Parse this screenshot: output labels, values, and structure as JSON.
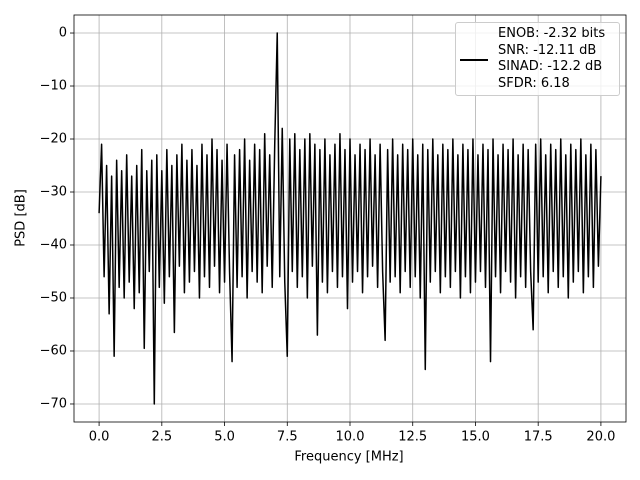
{
  "chart_data": {
    "type": "line",
    "xlabel": "Frequency [MHz]",
    "ylabel": "PSD [dB]",
    "xlim": [
      -1,
      21
    ],
    "ylim": [
      -73.4,
      3.4
    ],
    "grid": true,
    "legend": "upper right",
    "xticks": [
      {
        "value": 0,
        "label": "0.0"
      },
      {
        "value": 2.5,
        "label": "2.5"
      },
      {
        "value": 5,
        "label": "5.0"
      },
      {
        "value": 7.5,
        "label": "7.5"
      },
      {
        "value": 10,
        "label": "10.0"
      },
      {
        "value": 12.5,
        "label": "12.5"
      },
      {
        "value": 15,
        "label": "15.0"
      },
      {
        "value": 17.5,
        "label": "17.5"
      },
      {
        "value": 20,
        "label": "20.0"
      }
    ],
    "yticks": [
      0,
      {
        "value": -10,
        "label": "−10"
      },
      {
        "value": -20,
        "label": "−20"
      },
      {
        "value": -30,
        "label": "−30"
      },
      {
        "value": -40,
        "label": "−40"
      },
      {
        "value": -50,
        "label": "−50"
      },
      {
        "value": -60,
        "label": "−60"
      },
      {
        "value": -70,
        "label": "−70"
      }
    ],
    "x": [
      0,
      0.1,
      0.2,
      0.3,
      0.4,
      0.5,
      0.6,
      0.7,
      0.8,
      0.9,
      1,
      1.1,
      1.2,
      1.3,
      1.4,
      1.5,
      1.6,
      1.7,
      1.8,
      1.9,
      2,
      2.1,
      2.2,
      2.3,
      2.4,
      2.5,
      2.6,
      2.7,
      2.8,
      2.9,
      3,
      3.1,
      3.2,
      3.3,
      3.4,
      3.5,
      3.6,
      3.7,
      3.8,
      3.9,
      4,
      4.1,
      4.2,
      4.3,
      4.4,
      4.5,
      4.6,
      4.7,
      4.8,
      4.9,
      5,
      5.1,
      5.2,
      5.3,
      5.4,
      5.5,
      5.6,
      5.7,
      5.8,
      5.9,
      6,
      6.1,
      6.2,
      6.3,
      6.4,
      6.5,
      6.6,
      6.7,
      6.8,
      6.9,
      7,
      7.1,
      7.2,
      7.3,
      7.4,
      7.5,
      7.6,
      7.7,
      7.8,
      7.9,
      8,
      8.1,
      8.2,
      8.3,
      8.4,
      8.5,
      8.6,
      8.7,
      8.8,
      8.9,
      9,
      9.1,
      9.2,
      9.3,
      9.4,
      9.5,
      9.6,
      9.7,
      9.8,
      9.9,
      10,
      10.1,
      10.2,
      10.3,
      10.4,
      10.5,
      10.6,
      10.7,
      10.8,
      10.9,
      11,
      11.1,
      11.2,
      11.3,
      11.4,
      11.5,
      11.6,
      11.7,
      11.8,
      11.9,
      12,
      12.1,
      12.2,
      12.3,
      12.4,
      12.5,
      12.6,
      12.7,
      12.8,
      12.9,
      13,
      13.1,
      13.2,
      13.3,
      13.4,
      13.5,
      13.6,
      13.7,
      13.8,
      13.9,
      14,
      14.1,
      14.2,
      14.3,
      14.4,
      14.5,
      14.6,
      14.7,
      14.8,
      14.9,
      15,
      15.1,
      15.2,
      15.3,
      15.4,
      15.5,
      15.6,
      15.7,
      15.8,
      15.9,
      16,
      16.1,
      16.2,
      16.3,
      16.4,
      16.5,
      16.6,
      16.7,
      16.8,
      16.9,
      17,
      17.1,
      17.2,
      17.3,
      17.4,
      17.5,
      17.6,
      17.7,
      17.8,
      17.9,
      18,
      18.1,
      18.2,
      18.3,
      18.4,
      18.5,
      18.6,
      18.7,
      18.8,
      18.9,
      19,
      19.1,
      19.2,
      19.3,
      19.4,
      19.5,
      19.6,
      19.7,
      19.8,
      19.9,
      20
    ],
    "series": [
      {
        "name": "ENOB: -2.32 bits\nSNR: -12.11 dB\nSINAD: -12.2 dB\nSFDR: 6.18",
        "color": "#000000",
        "values": [
          -34,
          -21,
          -46,
          -25,
          -53,
          -27,
          -61,
          -24,
          -48,
          -26,
          -50,
          -23,
          -47,
          -27,
          -52,
          -25,
          -49,
          -22,
          -59.5,
          -26,
          -45,
          -24,
          -70,
          -23,
          -48,
          -26,
          -51,
          -22,
          -46,
          -25,
          -56.5,
          -23,
          -44,
          -21,
          -49,
          -24,
          -47,
          -22,
          -45,
          -25,
          -50,
          -21,
          -46,
          -23,
          -48,
          -20,
          -44,
          -22,
          -49,
          -24,
          -47,
          -21,
          -45,
          -62,
          -23,
          -48,
          -22,
          -46,
          -20,
          -50,
          -24,
          -45,
          -21,
          -47,
          -22,
          -49,
          -19,
          -44,
          -23,
          -48,
          -21,
          0,
          -46,
          -18,
          -47,
          -61,
          -20,
          -45,
          -19,
          -48,
          -22,
          -46,
          -20,
          -50,
          -19,
          -44,
          -21,
          -57,
          -22,
          -47,
          -20,
          -49,
          -23,
          -45,
          -21,
          -48,
          -19,
          -46,
          -22,
          -52,
          -20,
          -47,
          -23,
          -45,
          -21,
          -49,
          -22,
          -46,
          -20,
          -44,
          -23,
          -48,
          -21,
          -45,
          -58,
          -22,
          -47,
          -20,
          -46,
          -23,
          -49,
          -21,
          -45,
          -22,
          -48,
          -20,
          -46,
          -23,
          -50,
          -21,
          -63.5,
          -22,
          -47,
          -20,
          -45,
          -23,
          -49,
          -21,
          -46,
          -22,
          -48,
          -20,
          -45,
          -23,
          -50,
          -21,
          -46,
          -22,
          -49,
          -20,
          -47,
          -23,
          -45,
          -21,
          -48,
          -22,
          -62,
          -20,
          -46,
          -23,
          -49,
          -21,
          -45,
          -22,
          -47,
          -20,
          -50,
          -23,
          -46,
          -21,
          -48,
          -22,
          -45,
          -56,
          -21,
          -47,
          -20,
          -46,
          -23,
          -49,
          -21,
          -45,
          -22,
          -48,
          -20,
          -46,
          -23,
          -50,
          -21,
          -47,
          -22,
          -45,
          -20,
          -49,
          -23,
          -46,
          -21,
          -48,
          -22,
          -44,
          -27
        ]
      }
    ]
  }
}
